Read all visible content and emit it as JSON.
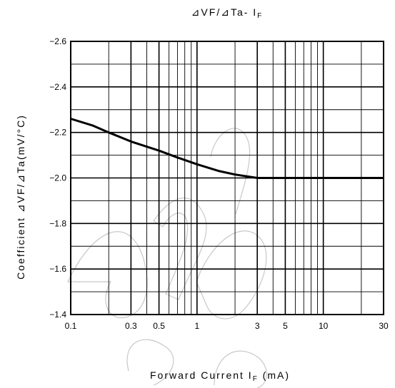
{
  "chart_data": {
    "type": "line",
    "title": {
      "prefix": "⊿VF/⊿Ta- I",
      "sub": "F"
    },
    "xlabel": {
      "prefix": "Forward Current I",
      "sub": "F",
      "suffix": " (mA)"
    },
    "ylabel": "Coefficient ⊿VF/⊿Ta(mV/°C)",
    "x_scale": "log",
    "xlim": [
      0.1,
      30
    ],
    "ylim": [
      -1.4,
      -2.6
    ],
    "y_reversed_magnitude": true,
    "grid": true,
    "x_ticks": [
      "0.1",
      "0.3",
      "0.5",
      "1",
      "3",
      "5",
      "10",
      "30"
    ],
    "x_tick_values": [
      0.1,
      0.3,
      0.5,
      1,
      3,
      5,
      10,
      30
    ],
    "y_ticks": [
      "−2.6",
      "−2.4",
      "−2.2",
      "−2.0",
      "−1.8",
      "−1.6",
      "−1.4"
    ],
    "y_tick_values": [
      -2.6,
      -2.4,
      -2.2,
      -2.0,
      -1.8,
      -1.6,
      -1.4
    ],
    "series": [
      {
        "x": [
          0.1,
          0.15,
          0.2,
          0.3,
          0.5,
          0.7,
          1,
          1.5,
          2,
          3,
          5,
          10,
          30
        ],
        "y": [
          -2.26,
          -2.23,
          -2.2,
          -2.16,
          -2.12,
          -2.09,
          -2.06,
          -2.03,
          -2.015,
          -2.0,
          -2.0,
          -2.0,
          -2.0
        ]
      }
    ]
  }
}
